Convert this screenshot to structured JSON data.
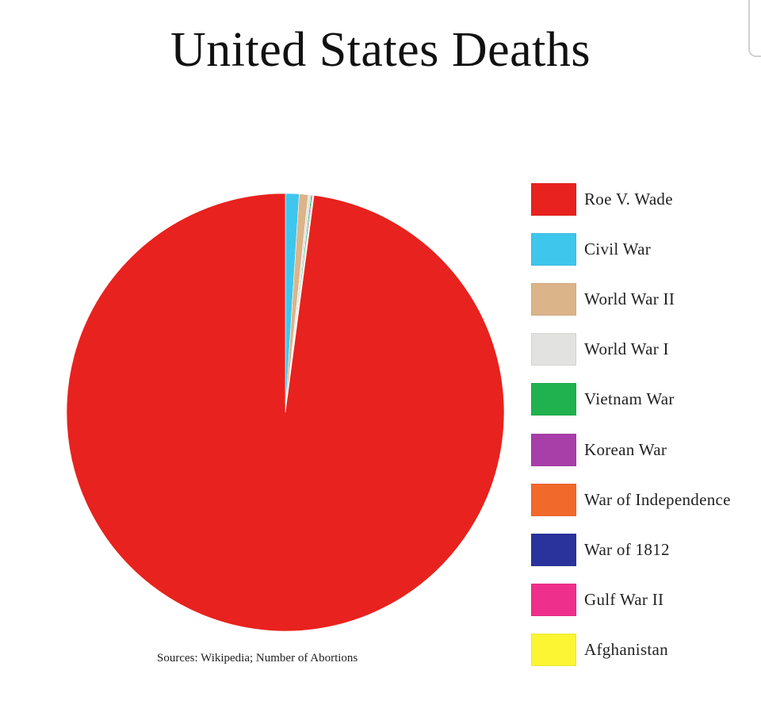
{
  "chart_data": {
    "type": "pie",
    "title": "United States Deaths",
    "slices": [
      {
        "label": "Roe V. Wade",
        "value": 60000000,
        "color": "#e8221e"
      },
      {
        "label": "Civil War",
        "value": 620000,
        "color": "#3fc6ec"
      },
      {
        "label": "World War II",
        "value": 405000,
        "color": "#dcb48a"
      },
      {
        "label": "World War I",
        "value": 116000,
        "color": "#e2e2e0"
      },
      {
        "label": "Vietnam War",
        "value": 58000,
        "color": "#1fb24e"
      },
      {
        "label": "Korean War",
        "value": 36000,
        "color": "#a83ea8"
      },
      {
        "label": "War of Independence",
        "value": 25000,
        "color": "#f2692c"
      },
      {
        "label": "War of 1812",
        "value": 15000,
        "color": "#2a329c"
      },
      {
        "label": "Gulf War II",
        "value": 4400,
        "color": "#ef2f8c"
      },
      {
        "label": "Afghanistan",
        "value": 2300,
        "color": "#fbf534"
      }
    ],
    "legend_position": "right",
    "source": "Sources: Wikipedia; Number of Abortions"
  }
}
